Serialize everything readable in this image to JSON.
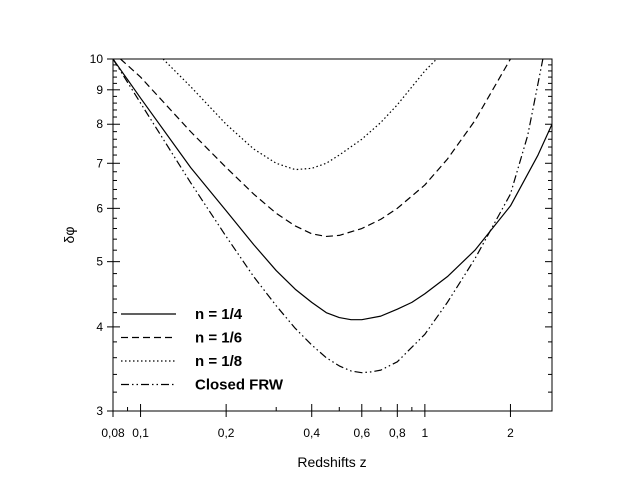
{
  "chart_data": {
    "type": "line",
    "xlabel": "Redshifts z",
    "ylabel": "δφ",
    "x_scale": "log",
    "y_scale": "log",
    "xlim": [
      0.08,
      2.8
    ],
    "ylim": [
      3,
      10
    ],
    "x_ticks": [
      {
        "value": 0.08,
        "label": "0,08"
      },
      {
        "value": 0.1,
        "label": "0,1"
      },
      {
        "value": 0.2,
        "label": "0,2"
      },
      {
        "value": 0.4,
        "label": "0,4"
      },
      {
        "value": 0.6,
        "label": "0,6"
      },
      {
        "value": 0.8,
        "label": "0,8"
      },
      {
        "value": 1,
        "label": "1"
      },
      {
        "value": 2,
        "label": "2"
      }
    ],
    "y_ticks": [
      {
        "value": 3,
        "label": "3"
      },
      {
        "value": 4,
        "label": "4"
      },
      {
        "value": 5,
        "label": "5"
      },
      {
        "value": 6,
        "label": "6"
      },
      {
        "value": 7,
        "label": "7"
      },
      {
        "value": 8,
        "label": "8"
      },
      {
        "value": 9,
        "label": "9"
      },
      {
        "value": 10,
        "label": "10"
      }
    ],
    "grid": false,
    "legend_position": "bottom-left",
    "series": [
      {
        "name": "n = 1/4",
        "dash": "solid",
        "points": [
          [
            0.08,
            10.0
          ],
          [
            0.1,
            8.75
          ],
          [
            0.15,
            6.9
          ],
          [
            0.2,
            5.95
          ],
          [
            0.25,
            5.3
          ],
          [
            0.3,
            4.85
          ],
          [
            0.35,
            4.55
          ],
          [
            0.4,
            4.35
          ],
          [
            0.45,
            4.2
          ],
          [
            0.5,
            4.13
          ],
          [
            0.55,
            4.1
          ],
          [
            0.6,
            4.1
          ],
          [
            0.7,
            4.15
          ],
          [
            0.8,
            4.25
          ],
          [
            0.9,
            4.35
          ],
          [
            1.0,
            4.48
          ],
          [
            1.2,
            4.75
          ],
          [
            1.5,
            5.2
          ],
          [
            2.0,
            6.05
          ],
          [
            2.5,
            7.2
          ],
          [
            2.8,
            8.0
          ]
        ]
      },
      {
        "name": "n = 1/6",
        "dash": "dashed",
        "points": [
          [
            0.085,
            10.0
          ],
          [
            0.1,
            9.4
          ],
          [
            0.15,
            7.8
          ],
          [
            0.2,
            6.9
          ],
          [
            0.25,
            6.3
          ],
          [
            0.3,
            5.9
          ],
          [
            0.35,
            5.65
          ],
          [
            0.4,
            5.5
          ],
          [
            0.45,
            5.45
          ],
          [
            0.5,
            5.47
          ],
          [
            0.6,
            5.6
          ],
          [
            0.7,
            5.78
          ],
          [
            0.8,
            6.0
          ],
          [
            1.0,
            6.5
          ],
          [
            1.2,
            7.1
          ],
          [
            1.5,
            8.1
          ],
          [
            2.0,
            10.0
          ]
        ]
      },
      {
        "name": "n = 1/8",
        "dash": "dotted",
        "points": [
          [
            0.12,
            10.0
          ],
          [
            0.15,
            9.1
          ],
          [
            0.2,
            8.0
          ],
          [
            0.25,
            7.35
          ],
          [
            0.3,
            7.0
          ],
          [
            0.35,
            6.85
          ],
          [
            0.4,
            6.88
          ],
          [
            0.45,
            7.0
          ],
          [
            0.5,
            7.2
          ],
          [
            0.6,
            7.6
          ],
          [
            0.7,
            8.05
          ],
          [
            0.8,
            8.55
          ],
          [
            1.0,
            9.6
          ],
          [
            1.1,
            10.0
          ]
        ]
      },
      {
        "name": "Closed FRW",
        "dash": "dashdotdot",
        "points": [
          [
            0.08,
            10.0
          ],
          [
            0.1,
            8.6
          ],
          [
            0.15,
            6.55
          ],
          [
            0.2,
            5.45
          ],
          [
            0.25,
            4.75
          ],
          [
            0.3,
            4.3
          ],
          [
            0.35,
            3.98
          ],
          [
            0.4,
            3.76
          ],
          [
            0.45,
            3.6
          ],
          [
            0.5,
            3.5
          ],
          [
            0.55,
            3.44
          ],
          [
            0.6,
            3.42
          ],
          [
            0.65,
            3.43
          ],
          [
            0.7,
            3.45
          ],
          [
            0.8,
            3.55
          ],
          [
            1.0,
            3.9
          ],
          [
            1.2,
            4.35
          ],
          [
            1.5,
            5.05
          ],
          [
            2.0,
            6.3
          ],
          [
            2.3,
            7.7
          ],
          [
            2.6,
            10.0
          ]
        ]
      }
    ]
  }
}
